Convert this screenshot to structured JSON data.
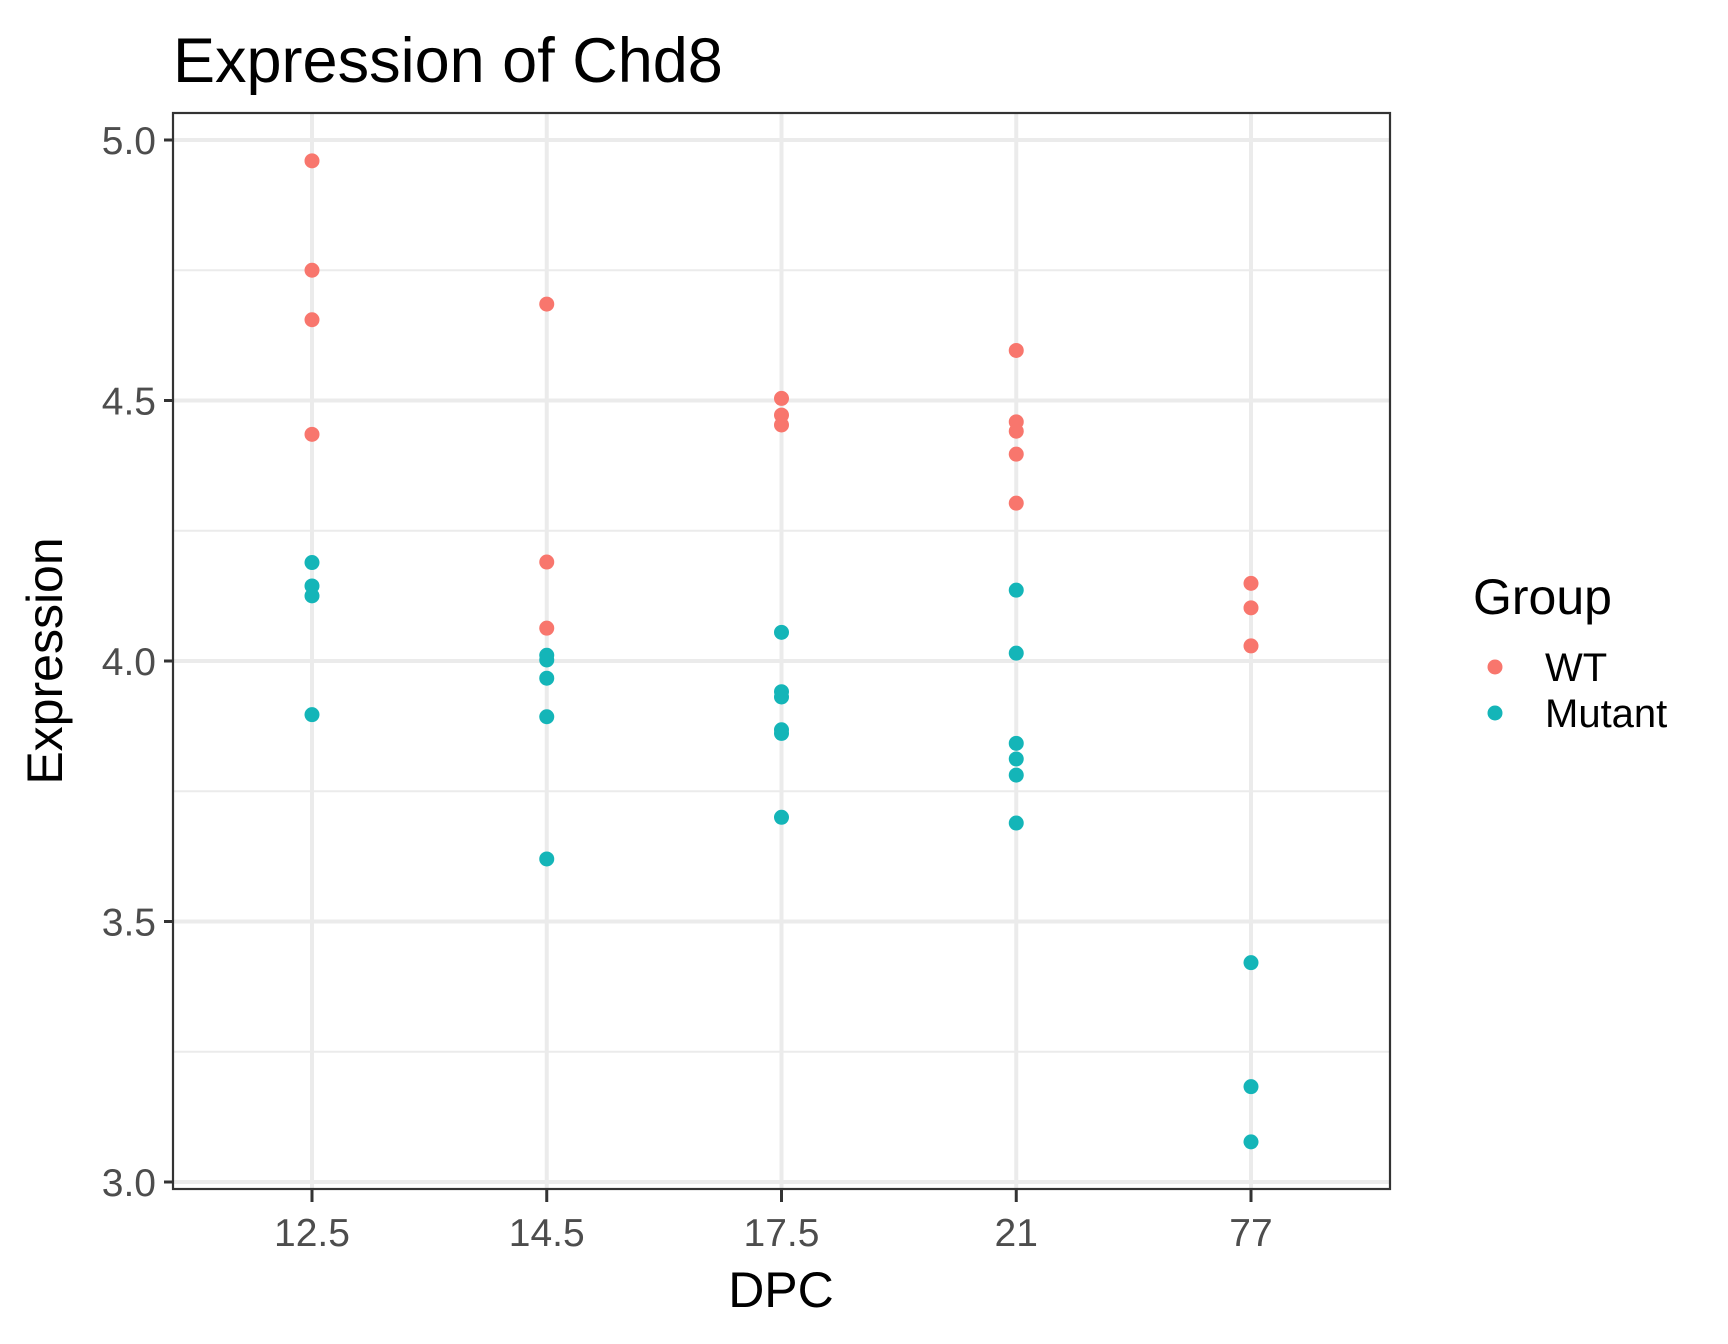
{
  "chart_data": {
    "type": "scatter",
    "title": "Expression of Chd8",
    "xlabel": "DPC",
    "ylabel": "Expression",
    "x_type": "categorical",
    "categories": [
      "12.5",
      "14.5",
      "17.5",
      "21",
      "77"
    ],
    "ylim": [
      2.98,
      5.05
    ],
    "y_ticks": [
      3.0,
      3.5,
      4.0,
      4.5,
      5.0
    ],
    "y_tick_labels": [
      "3.0",
      "3.5",
      "4.0",
      "4.5",
      "5.0"
    ],
    "grid": true,
    "legend": {
      "title": "Group",
      "position": "right",
      "entries": [
        "WT",
        "Mutant"
      ]
    },
    "series": [
      {
        "name": "WT",
        "color": "#F8766D",
        "points": [
          {
            "x": "12.5",
            "y": 4.96
          },
          {
            "x": "12.5",
            "y": 4.75
          },
          {
            "x": "12.5",
            "y": 4.655
          },
          {
            "x": "12.5",
            "y": 4.435
          },
          {
            "x": "14.5",
            "y": 4.685
          },
          {
            "x": "14.5",
            "y": 4.19
          },
          {
            "x": "14.5",
            "y": 4.063
          },
          {
            "x": "17.5",
            "y": 4.504
          },
          {
            "x": "17.5",
            "y": 4.472
          },
          {
            "x": "17.5",
            "y": 4.453
          },
          {
            "x": "21",
            "y": 4.596
          },
          {
            "x": "21",
            "y": 4.459
          },
          {
            "x": "21",
            "y": 4.441
          },
          {
            "x": "21",
            "y": 4.397
          },
          {
            "x": "21",
            "y": 4.303
          },
          {
            "x": "77",
            "y": 4.149
          },
          {
            "x": "77",
            "y": 4.102
          },
          {
            "x": "77",
            "y": 4.029
          }
        ]
      },
      {
        "name": "Mutant",
        "color": "#00BFC4",
        "points": [
          {
            "x": "12.5",
            "y": 4.189
          },
          {
            "x": "12.5",
            "y": 4.144
          },
          {
            "x": "12.5",
            "y": 4.125
          },
          {
            "x": "12.5",
            "y": 3.897
          },
          {
            "x": "14.5",
            "y": 4.011
          },
          {
            "x": "14.5",
            "y": 4.002
          },
          {
            "x": "14.5",
            "y": 3.967
          },
          {
            "x": "14.5",
            "y": 3.893
          },
          {
            "x": "14.5",
            "y": 3.62
          },
          {
            "x": "17.5",
            "y": 4.055
          },
          {
            "x": "17.5",
            "y": 3.941
          },
          {
            "x": "17.5",
            "y": 3.931
          },
          {
            "x": "17.5",
            "y": 3.868
          },
          {
            "x": "17.5",
            "y": 3.861
          },
          {
            "x": "17.5",
            "y": 3.7
          },
          {
            "x": "21",
            "y": 4.136
          },
          {
            "x": "21",
            "y": 4.015
          },
          {
            "x": "21",
            "y": 3.842
          },
          {
            "x": "21",
            "y": 3.812
          },
          {
            "x": "21",
            "y": 3.781
          },
          {
            "x": "21",
            "y": 3.689
          },
          {
            "x": "77",
            "y": 3.421
          },
          {
            "x": "77",
            "y": 3.183
          },
          {
            "x": "77",
            "y": 3.077
          }
        ]
      }
    ]
  },
  "colors": {
    "wt": "#F8766D",
    "mutant": "#14B5B8",
    "grid": "#EBEBEB",
    "panel_border": "#333333",
    "tick_text": "#4D4D4D"
  }
}
